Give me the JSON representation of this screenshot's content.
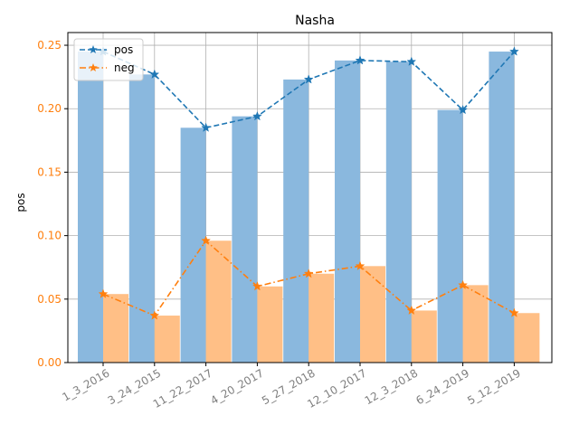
{
  "chart_data": {
    "type": "bar",
    "title": "Nasha",
    "xlabel": "",
    "ylabel": "pos",
    "ylim": [
      0,
      0.26
    ],
    "yticks": [
      0.0,
      0.05,
      0.1,
      0.15,
      0.2,
      0.25
    ],
    "yticks_text": [
      "0.00",
      "0.05",
      "0.10",
      "0.15",
      "0.20",
      "0.25"
    ],
    "grid": true,
    "legend_position": "top-left",
    "categories": [
      "1_3_2016",
      "3_24_2015",
      "11_22_2017",
      "4_20_2017",
      "5_27_2018",
      "12_10_2017",
      "12_3_2018",
      "6_24_2019",
      "5_12_2019"
    ],
    "series": [
      {
        "name": "pos",
        "color": "#1f77b4",
        "bar_color": "#8ab8de",
        "line_style": "dashed",
        "marker": "star",
        "values": [
          0.245,
          0.227,
          0.185,
          0.194,
          0.223,
          0.238,
          0.237,
          0.199,
          0.245
        ]
      },
      {
        "name": "neg",
        "color": "#ff7f0e",
        "bar_color": "#ffbf86",
        "line_style": "dashdot",
        "marker": "star",
        "values": [
          0.054,
          0.037,
          0.096,
          0.06,
          0.07,
          0.076,
          0.041,
          0.061,
          0.039
        ]
      }
    ]
  }
}
